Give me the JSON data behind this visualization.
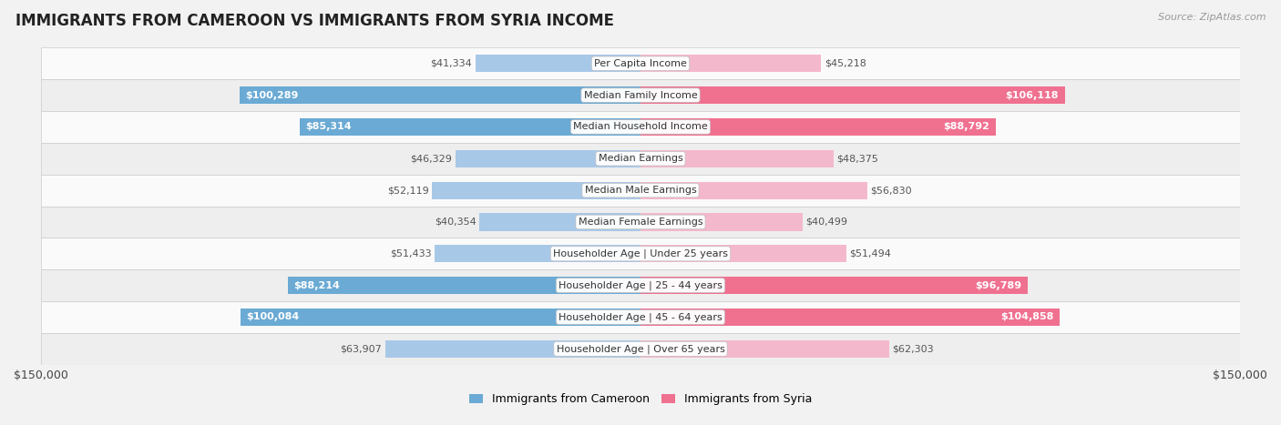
{
  "title": "IMMIGRANTS FROM CAMEROON VS IMMIGRANTS FROM SYRIA INCOME",
  "source": "Source: ZipAtlas.com",
  "categories": [
    "Per Capita Income",
    "Median Family Income",
    "Median Household Income",
    "Median Earnings",
    "Median Male Earnings",
    "Median Female Earnings",
    "Householder Age | Under 25 years",
    "Householder Age | 25 - 44 years",
    "Householder Age | 45 - 64 years",
    "Householder Age | Over 65 years"
  ],
  "cameroon_values": [
    41334,
    100289,
    85314,
    46329,
    52119,
    40354,
    51433,
    88214,
    100084,
    63907
  ],
  "syria_values": [
    45218,
    106118,
    88792,
    48375,
    56830,
    40499,
    51494,
    96789,
    104858,
    62303
  ],
  "cameroon_color_light": "#a8c8e8",
  "cameroon_color_dark": "#6aaad4",
  "syria_color_light": "#f4b8cc",
  "syria_color_dark": "#f07090",
  "max_value": 150000,
  "bg_color": "#f2f2f2",
  "row_bg_light": "#fafafa",
  "row_bg_dark": "#eeeeee",
  "legend_cameroon": "Immigrants from Cameroon",
  "legend_syria": "Immigrants from Syria",
  "axis_label": "$150,000",
  "cam_threshold": 65000,
  "syr_threshold": 65000
}
